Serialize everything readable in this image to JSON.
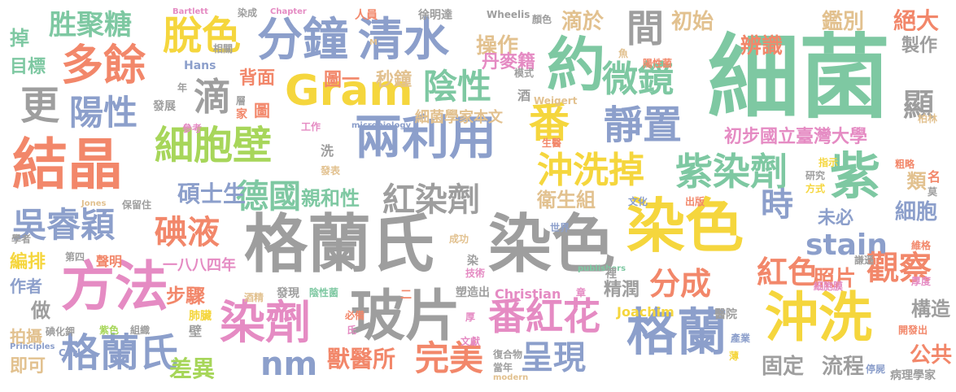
{
  "palette": {
    "gray": "#9e9e9e",
    "coral": "#f2876a",
    "green": "#7ec8a2",
    "blue": "#8c9fcb",
    "pink": "#e58bc3",
    "lime": "#a7d65a",
    "yellow": "#f5d63d",
    "tan": "#e2c18f"
  },
  "words": [
    {
      "id": "w1",
      "text": "細菌",
      "color": "green"
    },
    {
      "id": "w2",
      "text": "格蘭氏",
      "color": "gray"
    },
    {
      "id": "w3",
      "text": "染色",
      "color": "gray"
    },
    {
      "id": "w4",
      "text": "結晶",
      "color": "coral"
    },
    {
      "id": "w5",
      "text": "方法",
      "color": "pink"
    },
    {
      "id": "w6",
      "text": "染色",
      "color": "yellow"
    },
    {
      "id": "w7",
      "text": "沖洗",
      "color": "yellow"
    },
    {
      "id": "w8",
      "text": "格蘭",
      "color": "blue"
    },
    {
      "id": "w9",
      "text": "玻片",
      "color": "gray"
    },
    {
      "id": "w10",
      "text": "約",
      "color": "green"
    },
    {
      "id": "w11",
      "text": "Gram",
      "color": "yellow"
    },
    {
      "id": "w12",
      "text": "兩利用",
      "color": "blue"
    },
    {
      "id": "w13",
      "text": "分鐘",
      "color": "blue"
    },
    {
      "id": "w14",
      "text": "清水",
      "color": "blue"
    },
    {
      "id": "w15",
      "text": "多餘",
      "color": "coral"
    },
    {
      "id": "w16",
      "text": "細胞壁",
      "color": "lime"
    },
    {
      "id": "w17",
      "text": "染劑",
      "color": "pink"
    },
    {
      "id": "w18",
      "text": "格蘭氏",
      "color": "blue"
    },
    {
      "id": "w19",
      "text": "番紅花",
      "color": "pink"
    },
    {
      "id": "w20",
      "text": "紫",
      "color": "green"
    },
    {
      "id": "w21",
      "text": "紫染劑",
      "color": "green"
    },
    {
      "id": "w22",
      "text": "沖洗掉",
      "color": "yellow"
    },
    {
      "id": "w23",
      "text": "靜置",
      "color": "blue"
    },
    {
      "id": "w24",
      "text": "吳睿穎",
      "color": "blue"
    },
    {
      "id": "w25",
      "text": "陽性",
      "color": "blue"
    },
    {
      "id": "w26",
      "text": "脫色",
      "color": "yellow"
    },
    {
      "id": "w27",
      "text": "陰性",
      "color": "green"
    },
    {
      "id": "w28",
      "text": "微鏡",
      "color": "green"
    },
    {
      "id": "w29",
      "text": "間",
      "color": "gray"
    },
    {
      "id": "w30",
      "text": "紅染劑",
      "color": "gray"
    },
    {
      "id": "w31",
      "text": "德國",
      "color": "green"
    },
    {
      "id": "w32",
      "text": "碘液",
      "color": "coral"
    },
    {
      "id": "w33",
      "text": "番",
      "color": "yellow"
    },
    {
      "id": "w34",
      "text": "更",
      "color": "gray"
    },
    {
      "id": "w35",
      "text": "滴",
      "color": "gray"
    },
    {
      "id": "w36",
      "text": "胜聚糖",
      "color": "green"
    },
    {
      "id": "w37",
      "text": "stain",
      "color": "blue"
    },
    {
      "id": "w38",
      "text": "時",
      "color": "blue"
    },
    {
      "id": "w39",
      "text": "紅色",
      "color": "coral"
    },
    {
      "id": "w40",
      "text": "分成",
      "color": "coral"
    },
    {
      "id": "w41",
      "text": "觀察",
      "color": "coral"
    },
    {
      "id": "w42",
      "text": "nm",
      "color": "blue"
    },
    {
      "id": "w43",
      "text": "完美",
      "color": "coral"
    },
    {
      "id": "w44",
      "text": "呈現",
      "color": "blue"
    },
    {
      "id": "w45",
      "text": "顯",
      "color": "gray"
    },
    {
      "id": "w46",
      "text": "初步國立臺灣大學",
      "color": "pink"
    },
    {
      "id": "w47",
      "text": "絕大",
      "color": "coral"
    },
    {
      "id": "w48",
      "text": "鑑別",
      "color": "tan"
    },
    {
      "id": "w49",
      "text": "辨識",
      "color": "coral"
    },
    {
      "id": "w50",
      "text": "滴於",
      "color": "tan"
    },
    {
      "id": "w51",
      "text": "初始",
      "color": "tan"
    },
    {
      "id": "w52",
      "text": "操作",
      "color": "tan"
    },
    {
      "id": "w53",
      "text": "丹麥籍",
      "color": "pink"
    },
    {
      "id": "w54",
      "text": "秒鐘",
      "color": "tan"
    },
    {
      "id": "w55",
      "text": "圖一",
      "color": "coral"
    },
    {
      "id": "w56",
      "text": "背面",
      "color": "coral"
    },
    {
      "id": "w57",
      "text": "細菌學家本文",
      "color": "tan"
    },
    {
      "id": "w58",
      "text": "碩士生",
      "color": "blue"
    },
    {
      "id": "w59",
      "text": "親和性",
      "color": "green"
    },
    {
      "id": "w60",
      "text": "衛生組",
      "color": "tan"
    },
    {
      "id": "w61",
      "text": "細胞",
      "color": "blue"
    },
    {
      "id": "w62",
      "text": "未必",
      "color": "blue"
    },
    {
      "id": "w63",
      "text": "照片",
      "color": "coral"
    },
    {
      "id": "w64",
      "text": "構造",
      "color": "gray"
    },
    {
      "id": "w65",
      "text": "精潤",
      "color": "gray"
    },
    {
      "id": "w66",
      "text": "公共",
      "color": "coral"
    },
    {
      "id": "w67",
      "text": "固定",
      "color": "gray"
    },
    {
      "id": "w68",
      "text": "流程",
      "color": "gray"
    },
    {
      "id": "w69",
      "text": "獸醫所",
      "color": "coral"
    },
    {
      "id": "w70",
      "text": "差異",
      "color": "lime"
    },
    {
      "id": "w71",
      "text": "步驟",
      "color": "coral"
    },
    {
      "id": "w72",
      "text": "製作",
      "color": "gray"
    },
    {
      "id": "w73",
      "text": "類",
      "color": "tan"
    },
    {
      "id": "w74",
      "text": "掉",
      "color": "green"
    },
    {
      "id": "w75",
      "text": "目標",
      "color": "green"
    },
    {
      "id": "w76",
      "text": "編排",
      "color": "yellow"
    },
    {
      "id": "w77",
      "text": "作者",
      "color": "blue"
    },
    {
      "id": "w78",
      "text": "做",
      "color": "gray"
    },
    {
      "id": "w79",
      "text": "拍攝",
      "color": "tan"
    },
    {
      "id": "w80",
      "text": "即可",
      "color": "tan"
    },
    {
      "id": "w81",
      "text": "聲明",
      "color": "coral"
    },
    {
      "id": "w82",
      "text": "一八八四年",
      "color": "pink"
    },
    {
      "id": "w83",
      "text": "Christian",
      "color": "pink"
    },
    {
      "id": "w84",
      "text": "Joachim",
      "color": "yellow"
    },
    {
      "id": "w85",
      "text": "Hans",
      "color": "blue"
    },
    {
      "id": "w86",
      "text": "Weigert",
      "color": "tan"
    },
    {
      "id": "w87",
      "text": "Wheelis",
      "color": "gray"
    },
    {
      "id": "w88",
      "text": "Bartlett",
      "color": "pink"
    },
    {
      "id": "w89",
      "text": "Chapter",
      "color": "pink"
    },
    {
      "id": "w90",
      "text": "Carl",
      "color": "blue"
    },
    {
      "id": "w91",
      "text": "Jones",
      "color": "tan"
    },
    {
      "id": "w92",
      "text": "Principles",
      "color": "blue"
    },
    {
      "id": "w93",
      "text": "modern",
      "color": "tan"
    },
    {
      "id": "w94",
      "text": "microbiology",
      "color": "blue"
    },
    {
      "id": "w95",
      "text": "publishers",
      "color": "green"
    },
    {
      "id": "w96",
      "text": "徐明達",
      "color": "gray"
    },
    {
      "id": "w97",
      "text": "人員",
      "color": "coral"
    },
    {
      "id": "w98",
      "text": "染成",
      "color": "gray"
    },
    {
      "id": "w99",
      "text": "顏色",
      "color": "gray"
    },
    {
      "id": "w100",
      "text": "陽性菌",
      "color": "coral"
    },
    {
      "id": "w101",
      "text": "病理學家",
      "color": "gray"
    },
    {
      "id": "w102",
      "text": "停屍",
      "color": "blue"
    },
    {
      "id": "w103",
      "text": "開發出",
      "color": "coral"
    },
    {
      "id": "w104",
      "text": "醫院",
      "color": "gray"
    },
    {
      "id": "w105",
      "text": "產業",
      "color": "blue"
    },
    {
      "id": "w106",
      "text": "塑造出",
      "color": "gray"
    },
    {
      "id": "w107",
      "text": "發現",
      "color": "gray"
    },
    {
      "id": "w108",
      "text": "陰性菌",
      "color": "green"
    },
    {
      "id": "w109",
      "text": "酒精",
      "color": "tan"
    },
    {
      "id": "w110",
      "text": "肺臟",
      "color": "yellow"
    },
    {
      "id": "w111",
      "text": "碘化鉀",
      "color": "gray"
    },
    {
      "id": "w112",
      "text": "紫色",
      "color": "lime"
    },
    {
      "id": "w113",
      "text": "組織",
      "color": "gray"
    },
    {
      "id": "w114",
      "text": "必備",
      "color": "coral"
    },
    {
      "id": "w115",
      "text": "文獻",
      "color": "pink"
    },
    {
      "id": "w116",
      "text": "復合物",
      "color": "gray"
    },
    {
      "id": "w117",
      "text": "當年",
      "color": "gray"
    },
    {
      "id": "w118",
      "text": "技術",
      "color": "pink"
    },
    {
      "id": "w119",
      "text": "成功",
      "color": "tan"
    },
    {
      "id": "w120",
      "text": "世界",
      "color": "blue"
    },
    {
      "id": "w121",
      "text": "出版",
      "color": "coral"
    },
    {
      "id": "w122",
      "text": "文化",
      "color": "blue"
    },
    {
      "id": "w123",
      "text": "方式",
      "color": "yellow"
    },
    {
      "id": "w124",
      "text": "研究",
      "color": "gray"
    },
    {
      "id": "w125",
      "text": "謙遜",
      "color": "gray"
    },
    {
      "id": "w126",
      "text": "厚度",
      "color": "pink"
    },
    {
      "id": "w127",
      "text": "維格",
      "color": "coral"
    },
    {
      "id": "w128",
      "text": "細胞膜",
      "color": "pink"
    },
    {
      "id": "w129",
      "text": "名",
      "color": "coral"
    },
    {
      "id": "w130",
      "text": "莫",
      "color": "gray"
    },
    {
      "id": "w131",
      "text": "粗略",
      "color": "coral"
    },
    {
      "id": "w132",
      "text": "指示",
      "color": "yellow"
    },
    {
      "id": "w133",
      "text": "柏林",
      "color": "tan"
    },
    {
      "id": "w134",
      "text": "生醫",
      "color": "coral"
    },
    {
      "id": "w135",
      "text": "工作",
      "color": "pink"
    },
    {
      "id": "w136",
      "text": "發表",
      "color": "tan"
    },
    {
      "id": "w137",
      "text": "洗",
      "color": "gray"
    },
    {
      "id": "w138",
      "text": "圖",
      "color": "coral"
    },
    {
      "id": "w139",
      "text": "家",
      "color": "coral"
    },
    {
      "id": "w140",
      "text": "層",
      "color": "gray"
    },
    {
      "id": "w141",
      "text": "發展",
      "color": "gray"
    },
    {
      "id": "w142",
      "text": "參考",
      "color": "pink"
    },
    {
      "id": "w143",
      "text": "年",
      "color": "gray"
    },
    {
      "id": "w144",
      "text": "相關",
      "color": "gray"
    },
    {
      "id": "w145",
      "text": "模式",
      "color": "gray"
    },
    {
      "id": "w146",
      "text": "酒",
      "color": "gray"
    },
    {
      "id": "w147",
      "text": "學者",
      "color": "gray"
    },
    {
      "id": "w148",
      "text": "保留住",
      "color": "gray"
    },
    {
      "id": "w149",
      "text": "第四",
      "color": "gray"
    },
    {
      "id": "w150",
      "text": "壁",
      "color": "gray"
    },
    {
      "id": "w151",
      "text": "裡",
      "color": "gray"
    },
    {
      "id": "w152",
      "text": "章",
      "color": "pink"
    },
    {
      "id": "w153",
      "text": "薄",
      "color": "yellow"
    },
    {
      "id": "w154",
      "text": "厚",
      "color": "pink"
    },
    {
      "id": "w155",
      "text": "氏",
      "color": "pink"
    },
    {
      "id": "w156",
      "text": "二",
      "color": "coral"
    },
    {
      "id": "w157",
      "text": "魚",
      "color": "tan"
    },
    {
      "id": "w158",
      "text": "M",
      "color": "tan"
    },
    {
      "id": "w159",
      "text": "染",
      "color": "gray"
    }
  ]
}
